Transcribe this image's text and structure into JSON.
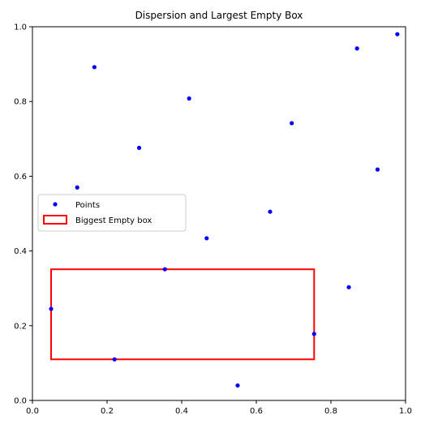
{
  "chart_data": {
    "type": "scatter",
    "title": "Dispersion and Largest Empty Box",
    "xlabel": "",
    "ylabel": "",
    "xlim": [
      0,
      1
    ],
    "ylim": [
      0,
      1
    ],
    "xticks": [
      "0.0",
      "0.2",
      "0.4",
      "0.6",
      "0.8",
      "1.0"
    ],
    "yticks": [
      "0.0",
      "0.2",
      "0.4",
      "0.6",
      "0.8",
      "1.0"
    ],
    "grid": false,
    "legend_position": "center-left",
    "series": [
      {
        "name": "Points",
        "color": "#0000ff",
        "points": [
          {
            "x": 0.05,
            "y": 0.245
          },
          {
            "x": 0.12,
            "y": 0.57
          },
          {
            "x": 0.166,
            "y": 0.892
          },
          {
            "x": 0.22,
            "y": 0.11
          },
          {
            "x": 0.286,
            "y": 0.676
          },
          {
            "x": 0.355,
            "y": 0.351
          },
          {
            "x": 0.42,
            "y": 0.808
          },
          {
            "x": 0.467,
            "y": 0.434
          },
          {
            "x": 0.55,
            "y": 0.04
          },
          {
            "x": 0.637,
            "y": 0.505
          },
          {
            "x": 0.695,
            "y": 0.742
          },
          {
            "x": 0.755,
            "y": 0.178
          },
          {
            "x": 0.848,
            "y": 0.303
          },
          {
            "x": 0.87,
            "y": 0.942
          },
          {
            "x": 0.925,
            "y": 0.618
          },
          {
            "x": 0.978,
            "y": 0.98
          }
        ]
      }
    ],
    "empty_box": {
      "name": "Biggest Empty box",
      "color": "#ff0000",
      "x0": 0.05,
      "y0": 0.11,
      "x1": 0.755,
      "y1": 0.351
    }
  }
}
